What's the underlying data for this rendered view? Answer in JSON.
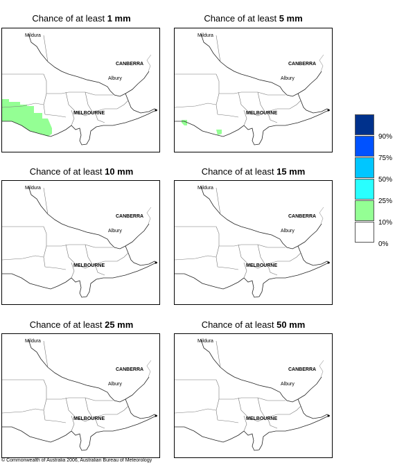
{
  "panels": [
    {
      "prefix": "Chance of at least ",
      "amount": "1 mm",
      "shading": "large"
    },
    {
      "prefix": "Chance of at least ",
      "amount": "5 mm",
      "shading": "small"
    },
    {
      "prefix": "Chance of at least ",
      "amount": "10 mm",
      "shading": "none"
    },
    {
      "prefix": "Chance of at least ",
      "amount": "15 mm",
      "shading": "none"
    },
    {
      "prefix": "Chance of at least ",
      "amount": "25 mm",
      "shading": "none"
    },
    {
      "prefix": "Chance of at least ",
      "amount": "50 mm",
      "shading": "none"
    }
  ],
  "places": {
    "mildura": "Mildura",
    "canberra": "CANBERRA",
    "albury": "Albury",
    "melbourne": "MELBOURNE"
  },
  "legend": {
    "colors": [
      "#00318c",
      "#0052ff",
      "#00c6ff",
      "#29ffff",
      "#94ff94",
      "#ffffff"
    ],
    "labels": [
      "90%",
      "75%",
      "50%",
      "25%",
      "10%",
      "0%"
    ]
  },
  "copyright": "© Commonwealth of Australia 2006, Australian Bureau of Meteorology"
}
